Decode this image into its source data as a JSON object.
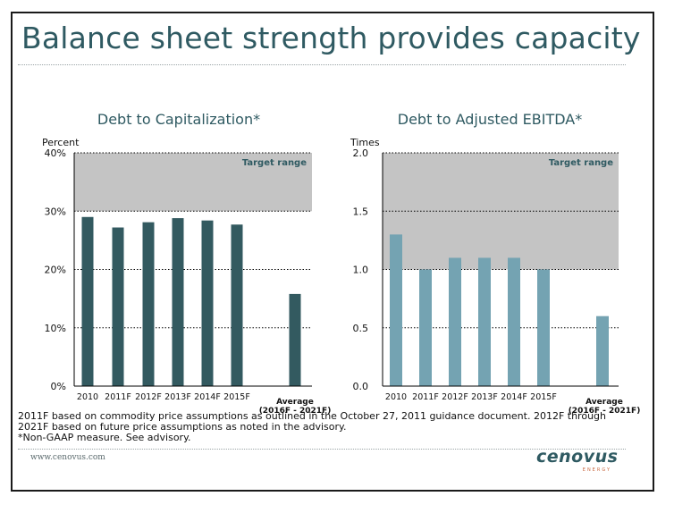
{
  "slide": {
    "title": "Balance sheet strength provides capacity",
    "footnotes": [
      "2011F based on commodity price assumptions as outlined in the October 27, 2011 guidance document. 2012F through",
      "2021F based on future price assumptions as noted in the advisory.",
      "*Non-GAAP measure. See advisory."
    ],
    "url": "www.cenovus.com",
    "logo_text": "cenovus",
    "logo_sub": "ENERGY"
  },
  "chart_data": [
    {
      "type": "bar",
      "title": "Debt to Capitalization*",
      "ylabel": "Percent",
      "categories": [
        "2010",
        "2011F",
        "2012F",
        "2013F",
        "2014F",
        "2015F",
        "Average\n(2016F - 2021F)"
      ],
      "values": [
        29,
        27.2,
        28.1,
        28.8,
        28.4,
        27.7,
        15.8
      ],
      "ylim": [
        0,
        40
      ],
      "yticks": [
        0,
        10,
        20,
        30,
        40
      ],
      "ytick_labels": [
        "0%",
        "10%",
        "20%",
        "30%",
        "40%"
      ],
      "target_range": [
        30,
        40
      ],
      "target_label": "Target range",
      "bar_color": "#335a60",
      "grid": "dotted"
    },
    {
      "type": "bar",
      "title": "Debt to Adjusted EBITDA*",
      "ylabel": "Times",
      "categories": [
        "2010",
        "2011F",
        "2012F",
        "2013F",
        "2014F",
        "2015F",
        "Average\n(2016F - 2021F)"
      ],
      "values": [
        1.3,
        1.0,
        1.1,
        1.1,
        1.1,
        1.0,
        0.6
      ],
      "ylim": [
        0,
        2.0
      ],
      "yticks": [
        0,
        0.5,
        1.0,
        1.5,
        2.0
      ],
      "ytick_labels": [
        "0.0",
        "0.5",
        "1.0",
        "1.5",
        "2.0"
      ],
      "target_range": [
        1.0,
        2.0
      ],
      "target_label": "Target range",
      "bar_color": "#74a3b2",
      "grid": "dotted"
    }
  ]
}
